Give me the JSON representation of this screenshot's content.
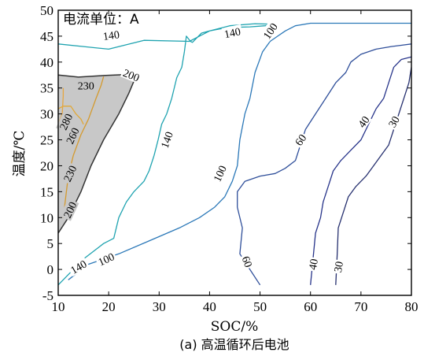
{
  "chart_data": {
    "type": "contour",
    "unit_note": "电流单位：A",
    "xlabel": "SOC/%",
    "ylabel": "温度/℃",
    "caption": "(a) 高温循环后电池",
    "xlim": [
      10,
      80
    ],
    "ylim": [
      -5,
      50
    ],
    "xticks": [
      10,
      20,
      30,
      40,
      50,
      60,
      70,
      80
    ],
    "yticks": [
      -5,
      0,
      5,
      10,
      15,
      20,
      25,
      30,
      35,
      40,
      45,
      50
    ],
    "grid": false,
    "shaded_region": {
      "fill": "#c8c8c8",
      "points": [
        [
          10,
          7
        ],
        [
          12,
          10
        ],
        [
          14.5,
          15
        ],
        [
          16.5,
          20
        ],
        [
          19,
          25
        ],
        [
          22,
          30
        ],
        [
          24,
          34
        ],
        [
          25.3,
          37
        ],
        [
          23.5,
          37.6
        ],
        [
          19,
          37.4
        ],
        [
          14,
          37.1
        ],
        [
          10,
          37.5
        ]
      ]
    },
    "contours": [
      {
        "level": "140",
        "color": "#1fa3b0",
        "points": [
          [
            10,
            -3
          ],
          [
            15,
            2
          ],
          [
            19,
            5
          ],
          [
            21,
            6
          ],
          [
            22,
            10
          ],
          [
            23.5,
            13
          ],
          [
            25,
            15
          ],
          [
            27,
            17
          ],
          [
            28,
            19
          ],
          [
            29,
            22
          ],
          [
            29.8,
            25
          ],
          [
            30.5,
            28
          ],
          [
            31.5,
            30
          ],
          [
            32.5,
            33
          ],
          [
            33.5,
            37
          ],
          [
            34.5,
            39
          ],
          [
            35,
            42
          ],
          [
            35.4,
            45
          ],
          [
            36.2,
            44
          ],
          [
            36.6,
            43.8
          ],
          [
            38.4,
            45.6
          ],
          [
            40,
            46
          ],
          [
            42,
            46.4
          ],
          [
            45,
            46.7
          ],
          [
            48,
            46.8
          ],
          [
            51,
            47
          ],
          [
            53,
            47.3
          ],
          [
            49,
            47.4
          ],
          [
            44,
            47
          ],
          [
            40,
            46
          ],
          [
            36,
            44
          ],
          [
            27,
            44.2
          ],
          [
            20,
            42.5
          ],
          [
            15,
            43
          ],
          [
            10,
            43.5
          ]
        ]
      },
      {
        "level": "100",
        "color": "#2b78b8",
        "points": [
          [
            12,
            -2
          ],
          [
            16,
            1
          ],
          [
            22,
            3
          ],
          [
            28,
            5.5
          ],
          [
            34,
            8
          ],
          [
            38,
            10
          ],
          [
            41,
            12
          ],
          [
            43,
            14
          ],
          [
            44.5,
            17
          ],
          [
            45.5,
            20
          ],
          [
            46,
            25
          ],
          [
            47,
            30
          ],
          [
            48,
            33
          ],
          [
            49,
            38
          ],
          [
            50.5,
            42
          ],
          [
            52,
            44
          ],
          [
            53.5,
            45
          ],
          [
            55,
            46
          ],
          [
            57,
            47
          ],
          [
            60,
            47.5
          ],
          [
            80,
            47.5
          ]
        ]
      },
      {
        "level": "60",
        "color": "#2f4f9a",
        "points": [
          [
            50,
            -3
          ],
          [
            48,
            0
          ],
          [
            46,
            3
          ],
          [
            46.5,
            8
          ],
          [
            45.5,
            12
          ],
          [
            45.5,
            15
          ],
          [
            47,
            17
          ],
          [
            50,
            18
          ],
          [
            53,
            18.5
          ],
          [
            55,
            19.5
          ],
          [
            57,
            21
          ],
          [
            58,
            24
          ],
          [
            59,
            27
          ],
          [
            61,
            30
          ],
          [
            63,
            33
          ],
          [
            65,
            36
          ],
          [
            67,
            38
          ],
          [
            68,
            40
          ],
          [
            70,
            41.5
          ],
          [
            73,
            42.5
          ],
          [
            76,
            43
          ],
          [
            80,
            43.5
          ]
        ]
      },
      {
        "level": "40",
        "color": "#27348a",
        "points": [
          [
            60,
            -3
          ],
          [
            60.5,
            2
          ],
          [
            61,
            7
          ],
          [
            62,
            10
          ],
          [
            62.5,
            13
          ],
          [
            63.5,
            16
          ],
          [
            64.5,
            19
          ],
          [
            66,
            21
          ],
          [
            68,
            23
          ],
          [
            70,
            25
          ],
          [
            71.5,
            28
          ],
          [
            73,
            31
          ],
          [
            74.5,
            33
          ],
          [
            75.5,
            36
          ],
          [
            76.5,
            39
          ],
          [
            78,
            40.5
          ],
          [
            80,
            41
          ]
        ]
      },
      {
        "level": "30",
        "color": "#26306f",
        "points": [
          [
            65,
            -3
          ],
          [
            65.3,
            3
          ],
          [
            65.5,
            8
          ],
          [
            66.5,
            11
          ],
          [
            67.5,
            14
          ],
          [
            69,
            16
          ],
          [
            71,
            18
          ],
          [
            72.5,
            20
          ],
          [
            74,
            22
          ],
          [
            75.5,
            24
          ],
          [
            76.5,
            27
          ],
          [
            77.5,
            30
          ],
          [
            78.5,
            33
          ],
          [
            79.5,
            36
          ],
          [
            80,
            39
          ]
        ]
      },
      {
        "level": "200",
        "color": "#333333",
        "points": [
          [
            10,
            7
          ],
          [
            12,
            10
          ],
          [
            14.5,
            15
          ],
          [
            16.5,
            20
          ],
          [
            19,
            25
          ],
          [
            22,
            30
          ],
          [
            24,
            34
          ],
          [
            25.3,
            37
          ],
          [
            23.5,
            37.6
          ],
          [
            19,
            37.4
          ],
          [
            14,
            37.1
          ],
          [
            10,
            37.5
          ]
        ]
      },
      {
        "level": "230",
        "color": "#d49a2e",
        "points": [
          [
            11,
            10
          ],
          [
            11.5,
            14
          ],
          [
            12,
            18
          ],
          [
            13,
            22
          ],
          [
            14.5,
            26
          ],
          [
            16,
            29
          ],
          [
            17.5,
            33
          ],
          [
            18.5,
            35.5
          ],
          [
            19,
            37.2
          ]
        ]
      },
      {
        "level": "260",
        "color": "#e0a838",
        "points": [
          [
            10,
            31
          ],
          [
            11,
            31.5
          ],
          [
            12.5,
            31.5
          ],
          [
            13.5,
            30
          ],
          [
            14.5,
            29
          ],
          [
            15,
            28
          ]
        ]
      },
      {
        "level": "280",
        "color": "#e6a640",
        "points": [
          [
            10,
            28
          ],
          [
            10.8,
            30
          ],
          [
            11,
            33.5
          ],
          [
            11,
            35
          ]
        ]
      }
    ],
    "contour_labels": [
      {
        "text": "140",
        "x": 20.5,
        "y": 45.2,
        "angle": -8
      },
      {
        "text": "140",
        "x": 44.5,
        "y": 45.7,
        "angle": -12
      },
      {
        "text": "140",
        "x": 31.5,
        "y": 25,
        "angle": -70
      },
      {
        "text": "140",
        "x": 14,
        "y": 0.5,
        "angle": -30
      },
      {
        "text": "100",
        "x": 52,
        "y": 46,
        "angle": -55
      },
      {
        "text": "100",
        "x": 42,
        "y": 18.5,
        "angle": -65
      },
      {
        "text": "100",
        "x": 19.5,
        "y": 2,
        "angle": -25
      },
      {
        "text": "60",
        "x": 58,
        "y": 25,
        "angle": -55
      },
      {
        "text": "60",
        "x": 47.5,
        "y": 1.5,
        "angle": 70
      },
      {
        "text": "40",
        "x": 70.5,
        "y": 28.5,
        "angle": -55
      },
      {
        "text": "40",
        "x": 60.5,
        "y": 1,
        "angle": -80
      },
      {
        "text": "30",
        "x": 76.5,
        "y": 28.5,
        "angle": -60
      },
      {
        "text": "30",
        "x": 65.5,
        "y": 0.5,
        "angle": -80
      },
      {
        "text": "200",
        "x": 24.5,
        "y": 37.5,
        "angle": 22
      },
      {
        "text": "200",
        "x": 12.3,
        "y": 11.5,
        "angle": -65
      },
      {
        "text": "230",
        "x": 15.5,
        "y": 35.5,
        "angle": 0
      },
      {
        "text": "230",
        "x": 12.3,
        "y": 18.5,
        "angle": -65
      },
      {
        "text": "260",
        "x": 12.8,
        "y": 25.8,
        "angle": -65
      },
      {
        "text": "280",
        "x": 11.5,
        "y": 28.5,
        "angle": -65
      }
    ]
  }
}
